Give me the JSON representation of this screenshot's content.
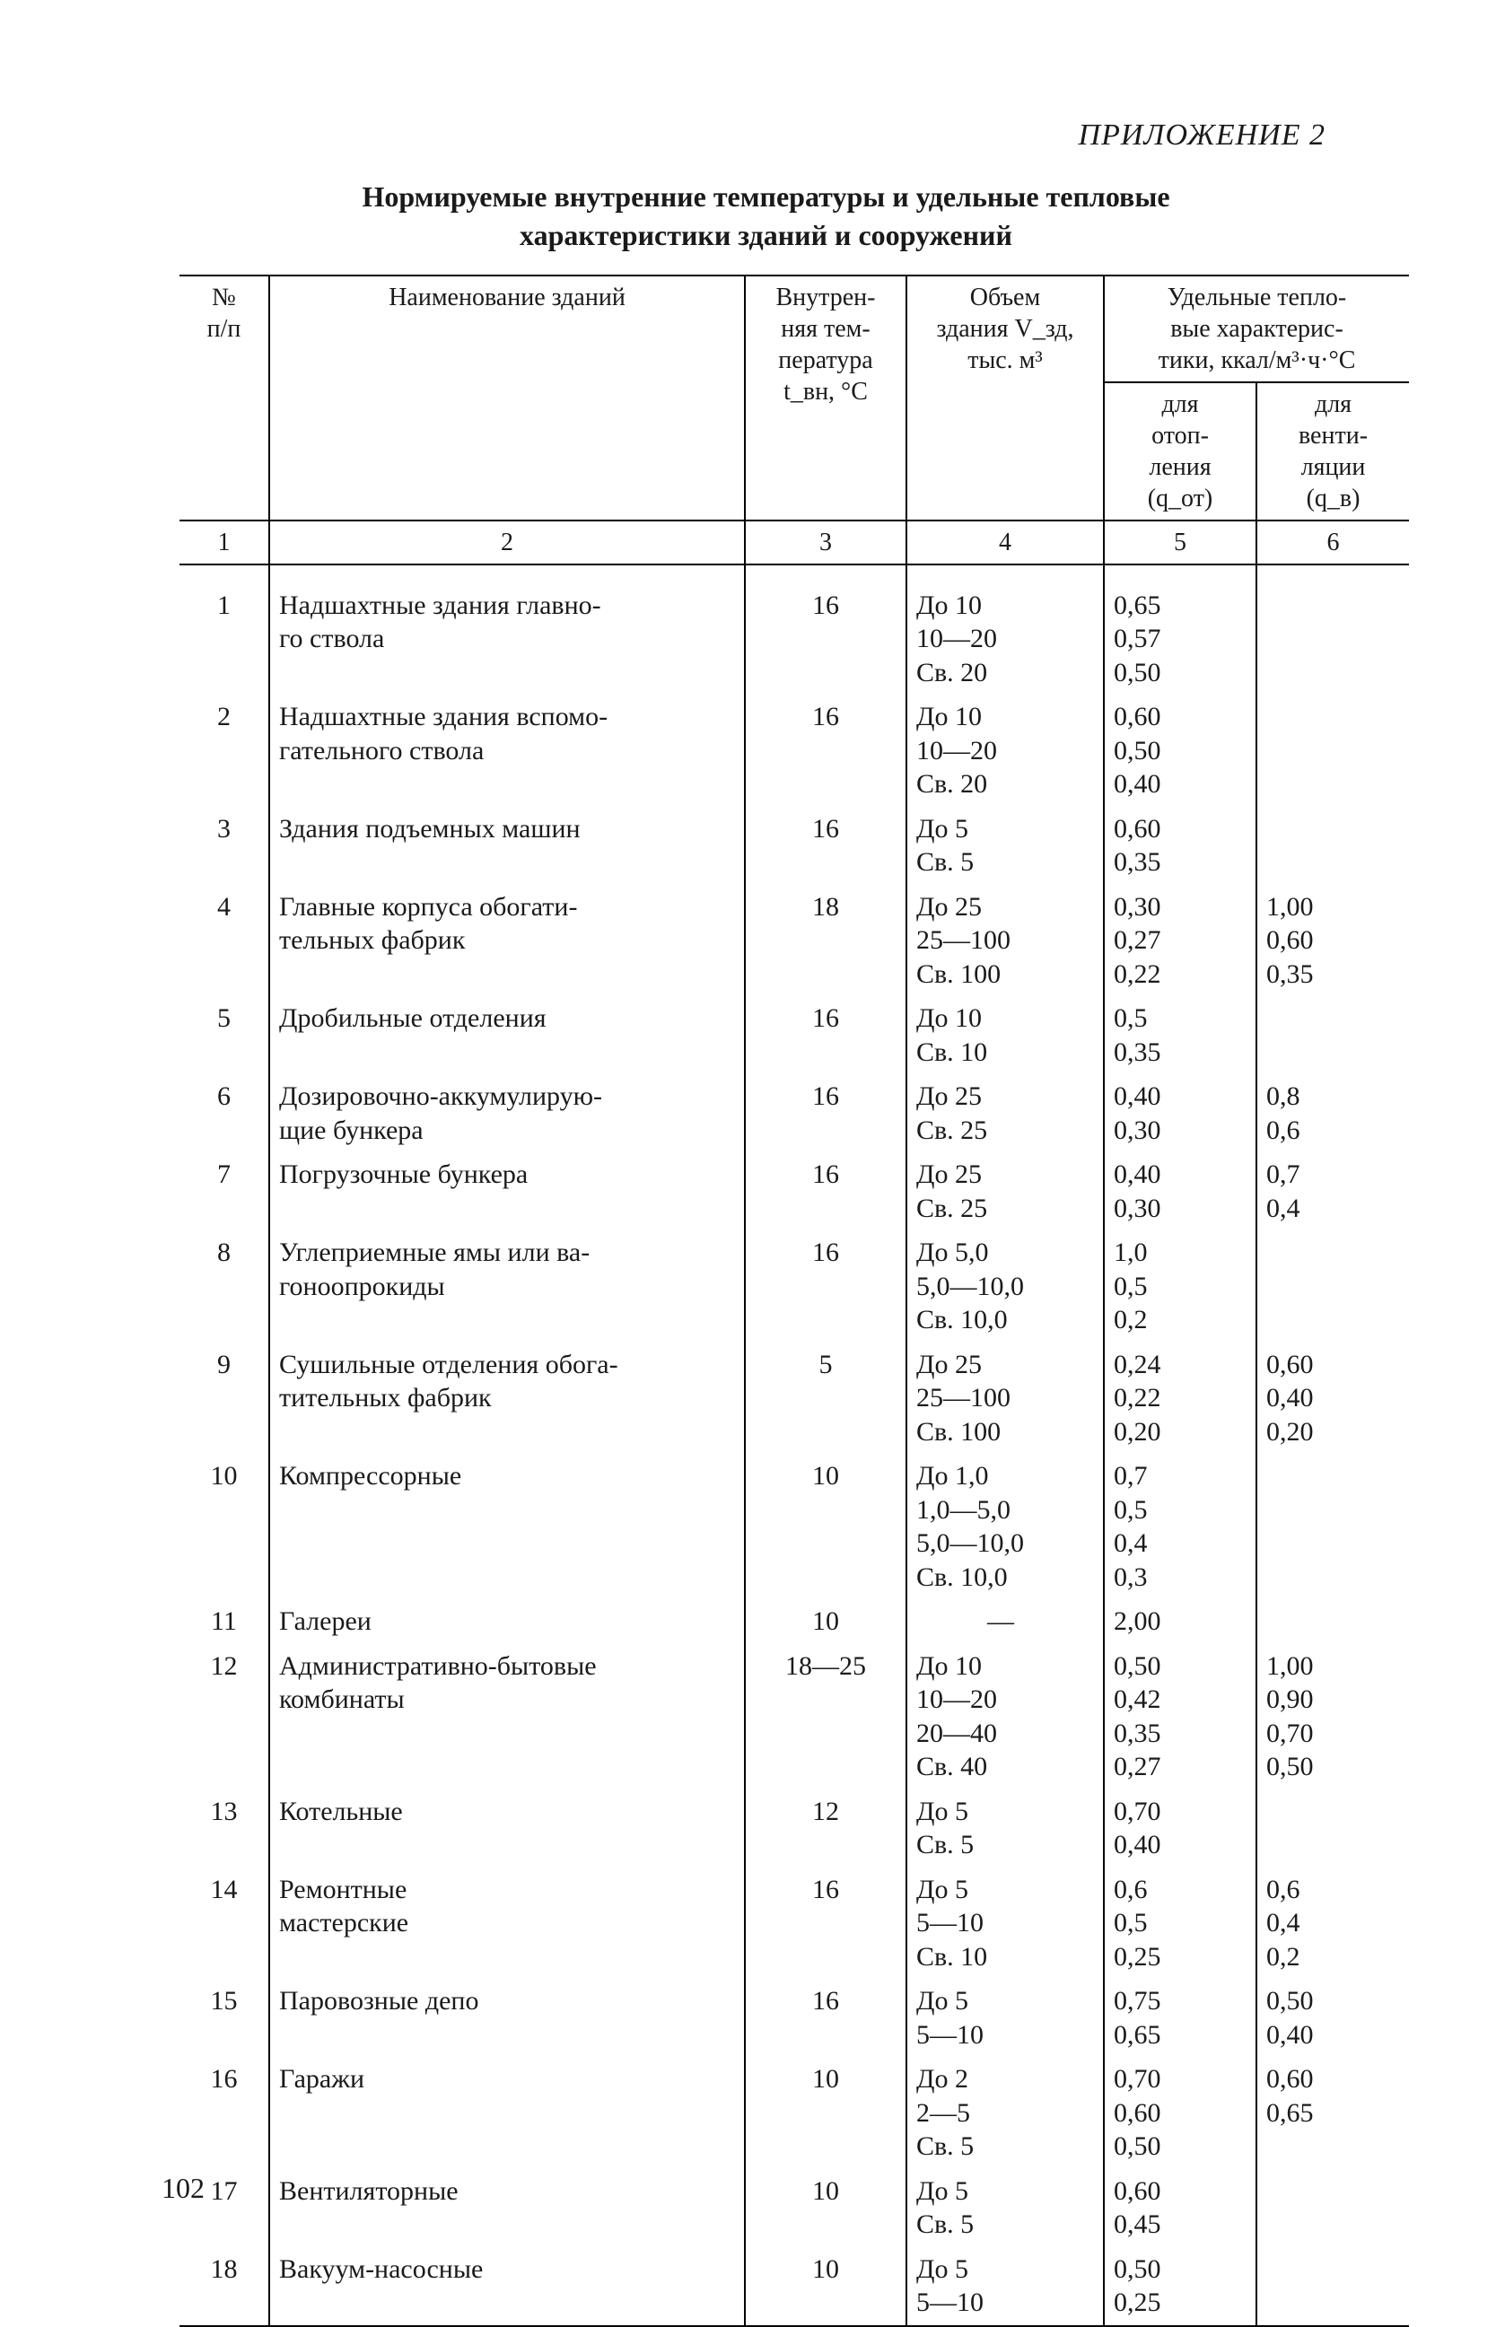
{
  "appendix_label": "ПРИЛОЖЕНИЕ 2",
  "title_line1": "Нормируемые внутренние температуры и удельные тепловые",
  "title_line2": "характеристики зданий и сооружений",
  "page_number": "102",
  "header": {
    "col_num": "№\nп/п",
    "col_name": "Наименование зданий",
    "col_temp": "Внутрен-\nняя тем-\nпература\nt_вн, °C",
    "col_vol": "Объем\nздания V_зд,\nтыс. м³",
    "col56_group": "Удельные тепло-\nвые характерис-\nтики, ккал/м³·ч·°C",
    "col_qot": "для\nотоп-\nления\n(q_от)",
    "col_qv": "для\nвенти-\nляции\n(q_в)",
    "idx": {
      "c1": "1",
      "c2": "2",
      "c3": "3",
      "c4": "4",
      "c5": "5",
      "c6": "6"
    }
  },
  "rows": [
    {
      "n": "1",
      "name": "Надшахтные здания главно-\nго ствола",
      "t": "16",
      "vol": [
        "До 10",
        "10—20",
        "Св. 20"
      ],
      "qot": [
        "0,65",
        "0,57",
        "0,50"
      ],
      "qv": [
        "",
        "",
        ""
      ]
    },
    {
      "n": "2",
      "name": "Надшахтные здания вспомо-\nгательного ствола",
      "t": "16",
      "vol": [
        "До 10",
        "10—20",
        "Св. 20"
      ],
      "qot": [
        "0,60",
        "0,50",
        "0,40"
      ],
      "qv": [
        "",
        "",
        ""
      ]
    },
    {
      "n": "3",
      "name": "Здания подъемных машин",
      "t": "16",
      "vol": [
        "До 5",
        "Св. 5"
      ],
      "qot": [
        "0,60",
        "0,35"
      ],
      "qv": [
        "",
        ""
      ]
    },
    {
      "n": "4",
      "name": "Главные корпуса обогати-\nтельных фабрик",
      "t": "18",
      "vol": [
        "До 25",
        "25—100",
        "Св. 100"
      ],
      "qot": [
        "0,30",
        "0,27",
        "0,22"
      ],
      "qv": [
        "1,00",
        "0,60",
        "0,35"
      ]
    },
    {
      "n": "5",
      "name": "Дробильные отделения",
      "t": "16",
      "vol": [
        "До 10",
        "Св. 10"
      ],
      "qot": [
        "0,5",
        "0,35"
      ],
      "qv": [
        "",
        ""
      ]
    },
    {
      "n": "6",
      "name": "Дозировочно-аккумулирую-\nщие бункера",
      "t": "16",
      "vol": [
        "До 25",
        "Св. 25"
      ],
      "qot": [
        "0,40",
        "0,30"
      ],
      "qv": [
        "0,8",
        "0,6"
      ]
    },
    {
      "n": "7",
      "name": "Погрузочные бункера",
      "t": "16",
      "vol": [
        "До 25",
        "Св. 25"
      ],
      "qot": [
        "0,40",
        "0,30"
      ],
      "qv": [
        "0,7",
        "0,4"
      ]
    },
    {
      "n": "8",
      "name": "Углеприемные ямы или ва-\nгоноопрокиды",
      "t": "16",
      "vol": [
        "До 5,0",
        "5,0—10,0",
        "Св. 10,0"
      ],
      "qot": [
        "1,0",
        "0,5",
        "0,2"
      ],
      "qv": [
        "",
        "",
        ""
      ]
    },
    {
      "n": "9",
      "name": "Сушильные отделения обога-\nтительных фабрик",
      "t": "5",
      "vol": [
        "До 25",
        "25—100",
        "Св. 100"
      ],
      "qot": [
        "0,24",
        "0,22",
        "0,20"
      ],
      "qv": [
        "0,60",
        "0,40",
        "0,20"
      ]
    },
    {
      "n": "10",
      "name": "Компрессорные",
      "t": "10",
      "vol": [
        "До 1,0",
        "1,0—5,0",
        "5,0—10,0",
        "Св. 10,0"
      ],
      "qot": [
        "0,7",
        "0,5",
        "0,4",
        "0,3"
      ],
      "qv": [
        "",
        "",
        "",
        ""
      ]
    },
    {
      "n": "11",
      "name": "Галереи",
      "t": "10",
      "vol": [
        "—"
      ],
      "qot": [
        "2,00"
      ],
      "qv": [
        ""
      ],
      "vol_center": true
    },
    {
      "n": "12",
      "name": "Административно-бытовые\nкомбинаты",
      "t": "18—25",
      "vol": [
        "До 10",
        "10—20",
        "20—40",
        "Св. 40"
      ],
      "qot": [
        "0,50",
        "0,42",
        "0,35",
        "0,27"
      ],
      "qv": [
        "1,00",
        "0,90",
        "0,70",
        "0,50"
      ]
    },
    {
      "n": "13",
      "name": "Котельные",
      "t": "12",
      "vol": [
        "До 5",
        "Св. 5"
      ],
      "qot": [
        "0,70",
        "0,40"
      ],
      "qv": [
        "",
        ""
      ]
    },
    {
      "n": "14",
      "name": "Ремонтные\nмастерские",
      "t": "16",
      "vol": [
        "До 5",
        "5—10",
        "Св. 10"
      ],
      "qot": [
        "0,6",
        "0,5",
        "0,25"
      ],
      "qv": [
        "0,6",
        "0,4",
        "0,2"
      ]
    },
    {
      "n": "15",
      "name": "Паровозные депо",
      "t": "16",
      "vol": [
        "До 5",
        "5—10"
      ],
      "qot": [
        "0,75",
        "0,65"
      ],
      "qv": [
        "0,50",
        "0,40"
      ]
    },
    {
      "n": "16",
      "name": "Гаражи",
      "t": "10",
      "vol": [
        "До 2",
        "2—5",
        "Св. 5"
      ],
      "qot": [
        "0,70",
        "0,60",
        "0,50"
      ],
      "qv": [
        "0,60",
        "0,65",
        ""
      ]
    },
    {
      "n": "17",
      "name": "Вентиляторные",
      "t": "10",
      "vol": [
        "До 5",
        "Св. 5"
      ],
      "qot": [
        "0,60",
        "0,45"
      ],
      "qv": [
        "",
        ""
      ]
    },
    {
      "n": "18",
      "name": "Вакуум-насосные",
      "t": "10",
      "vol": [
        "До 5",
        "5—10"
      ],
      "qot": [
        "0,50",
        "0,25"
      ],
      "qv": [
        "",
        ""
      ]
    }
  ]
}
